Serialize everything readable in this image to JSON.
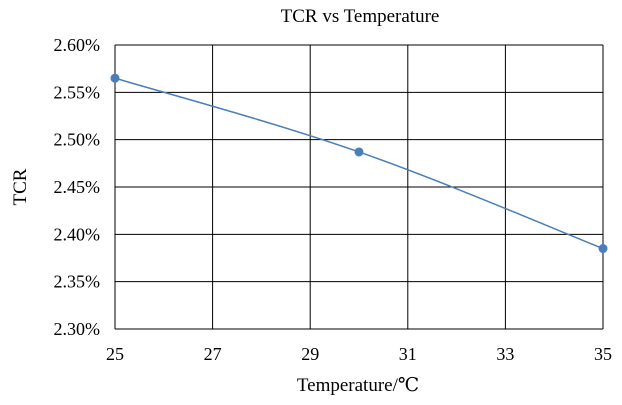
{
  "chart_data": {
    "type": "scatter",
    "title": "TCR vs Temperature",
    "xlabel": "Temperature/℃",
    "ylabel": "TCR",
    "xlim": [
      25,
      35
    ],
    "ylim": [
      2.3,
      2.6
    ],
    "x_ticks": [
      25,
      27,
      29,
      31,
      33,
      35
    ],
    "x_tick_labels": [
      "25",
      "27",
      "29",
      "31",
      "33",
      "35"
    ],
    "y_ticks": [
      2.3,
      2.35,
      2.4,
      2.45,
      2.5,
      2.55,
      2.6
    ],
    "y_tick_labels": [
      "2.30%",
      "2.35%",
      "2.40%",
      "2.45%",
      "2.50%",
      "2.55%",
      "2.60%"
    ],
    "grid": true,
    "legend": "none",
    "series": [
      {
        "x": [
          25,
          30,
          35
        ],
        "y": [
          2.565,
          2.487,
          2.385
        ],
        "line": "smooth",
        "color": "#4a7ebb"
      }
    ],
    "colors": {
      "series": "#4a7ebb",
      "grid": "#000000",
      "background": "#ffffff"
    }
  }
}
